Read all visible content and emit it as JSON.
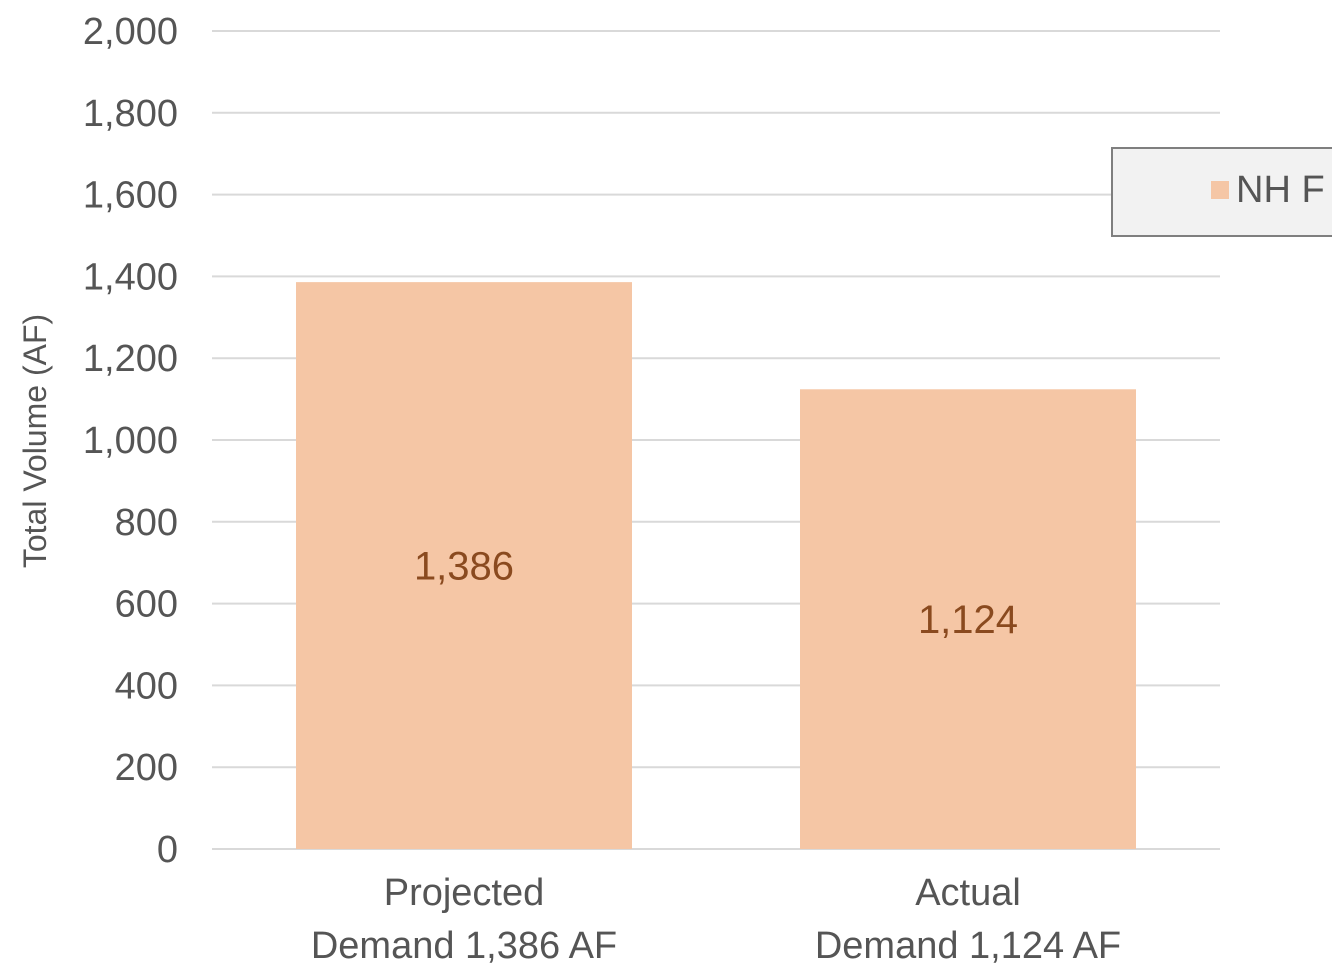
{
  "chart_data": {
    "type": "bar",
    "categories": [
      [
        "Projected",
        "Demand 1,386 AF"
      ],
      [
        "Actual",
        "Demand 1,124 AF"
      ]
    ],
    "series": [
      {
        "name": "NH F",
        "values": [
          1386,
          1124
        ],
        "data_labels": [
          "1,386",
          "1,124"
        ],
        "color": "#f5c6a5"
      }
    ],
    "ylabel": "Total Volume (AF)",
    "ylim": [
      0,
      2000
    ],
    "yticks": [
      0,
      200,
      400,
      600,
      800,
      1000,
      1200,
      1400,
      1600,
      1800,
      2000
    ],
    "ytick_labels": [
      "0",
      "200",
      "400",
      "600",
      "800",
      "1,000",
      "1,200",
      "1,400",
      "1,600",
      "1,800",
      "2,000"
    ],
    "grid": true,
    "gridline_color": "#d9d9d9",
    "label_color": "#555555",
    "data_label_color": "#8a4a1f",
    "legend": {
      "placement": "right",
      "background": "#f2f2f2",
      "border": "#7f7f7f"
    }
  }
}
